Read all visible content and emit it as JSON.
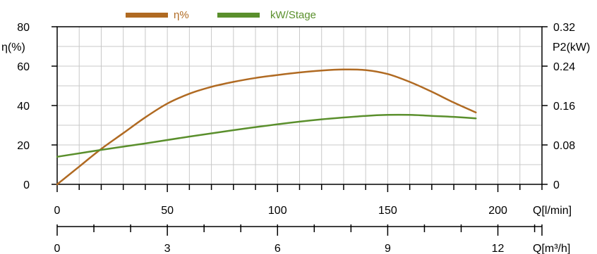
{
  "chart_data": {
    "type": "line",
    "legend": [
      {
        "label": "η%",
        "color": "#b06a22"
      },
      {
        "label": "kW/Stage",
        "color": "#5a8f2c"
      }
    ],
    "left_axis": {
      "title": "η(%)",
      "ylim": [
        0,
        80
      ],
      "ticks": [
        "0",
        "20",
        "40",
        "60",
        "80"
      ]
    },
    "right_axis": {
      "title": "P2(kW)",
      "ylim": [
        0,
        0.32
      ],
      "ticks": [
        "0",
        "0.08",
        "0.16",
        "0.24",
        "0.32"
      ]
    },
    "x_axis": {
      "title": "Q[l/min]",
      "xlim": [
        0,
        220
      ],
      "ticks": [
        "0",
        "50",
        "100",
        "150",
        "200"
      ]
    },
    "x_axis_2": {
      "title": "Q[m³/h]",
      "xlim": [
        0,
        13.2
      ],
      "ticks": [
        "0",
        "3",
        "6",
        "9",
        "12"
      ]
    },
    "grid": true,
    "legend_position": "top",
    "series": [
      {
        "name": "η%",
        "axis": "left",
        "x": [
          0,
          10,
          20,
          30,
          40,
          50,
          60,
          70,
          80,
          90,
          100,
          110,
          120,
          130,
          140,
          150,
          160,
          170,
          180,
          190
        ],
        "y": [
          0,
          9,
          18,
          26,
          34,
          41,
          46,
          49.5,
          52,
          54,
          55.5,
          56.8,
          57.8,
          58.3,
          58,
          56,
          52,
          47,
          41.5,
          36.5
        ]
      },
      {
        "name": "kW/Stage",
        "axis": "right",
        "x": [
          0,
          20,
          40,
          60,
          80,
          100,
          120,
          140,
          150,
          160,
          170,
          180,
          190
        ],
        "y": [
          0.056,
          0.07,
          0.083,
          0.097,
          0.11,
          0.122,
          0.132,
          0.139,
          0.141,
          0.141,
          0.139,
          0.137,
          0.134
        ]
      }
    ]
  }
}
